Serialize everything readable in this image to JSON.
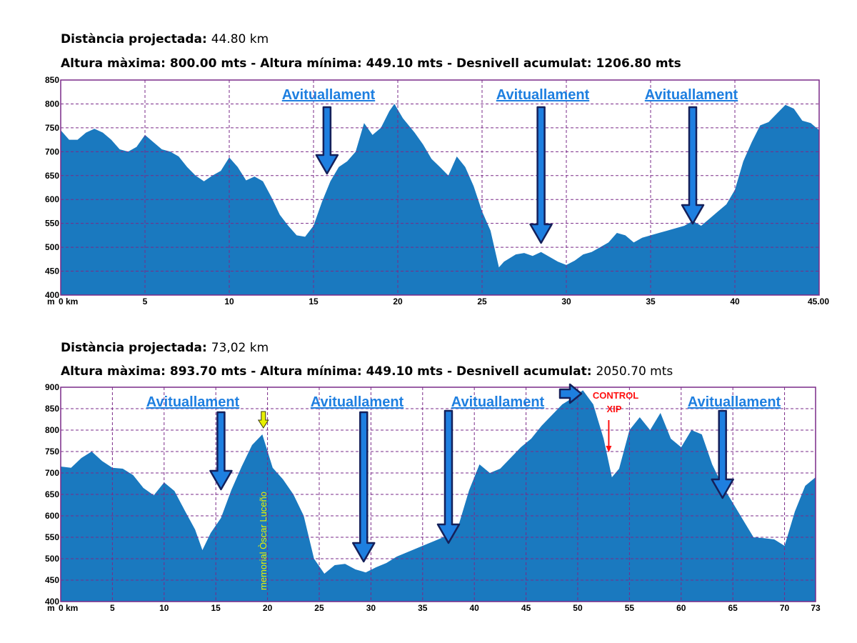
{
  "chart_data": [
    {
      "type": "area",
      "header": {
        "distance_label": "Distància projectada:",
        "distance_value": "44.80 km",
        "stats_prefix": "Altura màxima: 800.00 mts - Altura mínima: 449.10 mts - Desnivell acumulat:",
        "stats_value": "1206.80 mts"
      },
      "unit_label": "m",
      "xlim": [
        0,
        45
      ],
      "ylim": [
        400,
        850
      ],
      "x_ticks": [
        {
          "x": 0,
          "label": "0 km"
        },
        {
          "x": 5,
          "label": "5"
        },
        {
          "x": 10,
          "label": "10"
        },
        {
          "x": 15,
          "label": "15"
        },
        {
          "x": 20,
          "label": "20"
        },
        {
          "x": 25,
          "label": "25"
        },
        {
          "x": 30,
          "label": "30"
        },
        {
          "x": 35,
          "label": "35"
        },
        {
          "x": 40,
          "label": "40"
        },
        {
          "x": 45,
          "label": "45.00"
        }
      ],
      "y_ticks": [
        400,
        450,
        500,
        550,
        600,
        650,
        700,
        750,
        800,
        850
      ],
      "grid": true,
      "elevation_profile": {
        "x": [
          0,
          0.5,
          1,
          1.5,
          2,
          2.5,
          3,
          3.5,
          4,
          4.5,
          5,
          5.5,
          6,
          6.5,
          7,
          7.5,
          8,
          8.5,
          9,
          9.5,
          10,
          10.5,
          11,
          11.5,
          12,
          12.5,
          13,
          13.5,
          14,
          14.5,
          15,
          15.5,
          16,
          16.5,
          17,
          17.5,
          18,
          18.5,
          19,
          19.5,
          19.8,
          20.3,
          21,
          21.5,
          22,
          22.5,
          23,
          23.5,
          24,
          24.5,
          25,
          25.5,
          26,
          26.3,
          27,
          27.5,
          28,
          28.5,
          29,
          29.5,
          30,
          30.5,
          31,
          31.5,
          32,
          32.5,
          33,
          33.5,
          34,
          34.5,
          35,
          35.5,
          36,
          36.5,
          37,
          37.5,
          38,
          38.5,
          39,
          39.5,
          40,
          40.5,
          41,
          41.5,
          42,
          42.5,
          43,
          43.5,
          44,
          44.5,
          45
        ],
        "y": [
          745,
          725,
          725,
          740,
          748,
          740,
          725,
          705,
          700,
          710,
          735,
          720,
          705,
          700,
          690,
          668,
          650,
          638,
          650,
          660,
          688,
          668,
          640,
          648,
          638,
          605,
          568,
          545,
          525,
          522,
          545,
          595,
          638,
          668,
          680,
          700,
          760,
          735,
          750,
          785,
          800,
          770,
          740,
          715,
          685,
          668,
          650,
          690,
          668,
          628,
          575,
          535,
          458,
          470,
          485,
          488,
          482,
          490,
          480,
          470,
          463,
          472,
          485,
          490,
          500,
          510,
          530,
          525,
          510,
          520,
          525,
          530,
          535,
          540,
          545,
          555,
          545,
          560,
          575,
          590,
          620,
          680,
          720,
          755,
          762,
          780,
          798,
          790,
          765,
          760,
          745
        ]
      },
      "annotations": [
        {
          "text": "Avituallament",
          "x": 15.8
        },
        {
          "text": "Avituallament",
          "x": 28.5
        },
        {
          "text": "Avituallament",
          "x": 37.5
        }
      ]
    },
    {
      "type": "area",
      "header": {
        "distance_label": "Distància projectada:",
        "distance_value": "73,02 km",
        "stats_prefix": "Altura màxima: 893.70 mts - Altura mínima: 449.10 mts - Desnivell acumulat:",
        "stats_value": "2050.70 mts"
      },
      "unit_label": "m",
      "xlim": [
        0,
        73
      ],
      "ylim": [
        400,
        900
      ],
      "x_ticks": [
        {
          "x": 0,
          "label": "0 km"
        },
        {
          "x": 5,
          "label": "5"
        },
        {
          "x": 10,
          "label": "10"
        },
        {
          "x": 15,
          "label": "15"
        },
        {
          "x": 20,
          "label": "20"
        },
        {
          "x": 25,
          "label": "25"
        },
        {
          "x": 30,
          "label": "30"
        },
        {
          "x": 35,
          "label": "35"
        },
        {
          "x": 40,
          "label": "40"
        },
        {
          "x": 45,
          "label": "45"
        },
        {
          "x": 50,
          "label": "50"
        },
        {
          "x": 55,
          "label": "55"
        },
        {
          "x": 60,
          "label": "60"
        },
        {
          "x": 65,
          "label": "65"
        },
        {
          "x": 70,
          "label": "70"
        },
        {
          "x": 73,
          "label": "73"
        }
      ],
      "y_ticks": [
        400,
        450,
        500,
        550,
        600,
        650,
        700,
        750,
        800,
        850,
        900
      ],
      "grid": true,
      "elevation_profile": {
        "x": [
          0,
          1,
          2,
          3,
          4,
          5,
          6,
          7,
          8,
          9,
          10,
          11,
          12,
          13,
          13.7,
          14.5,
          15.5,
          16.5,
          17.5,
          18.5,
          19.5,
          20.5,
          21.5,
          22.5,
          23.5,
          24.5,
          25.5,
          26.5,
          27.5,
          28.5,
          29.5,
          30.5,
          31.5,
          32.5,
          33.5,
          34.5,
          35.5,
          36.5,
          37.5,
          38.5,
          39.5,
          40.5,
          41.5,
          42.5,
          43.5,
          44.5,
          45.5,
          46.5,
          47.5,
          48.5,
          49.5,
          50.5,
          51.5,
          52.5,
          53.3,
          54,
          55,
          56,
          57,
          58,
          59,
          60,
          61,
          62,
          63,
          64,
          65,
          66,
          67,
          68,
          69,
          70,
          71,
          72,
          73
        ],
        "y": [
          715,
          712,
          735,
          750,
          728,
          712,
          710,
          695,
          665,
          648,
          678,
          658,
          612,
          568,
          520,
          560,
          595,
          660,
          715,
          765,
          790,
          712,
          685,
          650,
          600,
          500,
          465,
          485,
          488,
          475,
          468,
          480,
          490,
          505,
          515,
          525,
          535,
          545,
          555,
          580,
          660,
          720,
          700,
          710,
          735,
          760,
          780,
          810,
          835,
          860,
          875,
          893,
          860,
          780,
          690,
          710,
          800,
          830,
          800,
          840,
          780,
          760,
          800,
          790,
          720,
          670,
          630,
          590,
          550,
          548,
          545,
          530,
          610,
          670,
          690
        ]
      },
      "annotations": [
        {
          "text": "Avituallament",
          "x": 15.5
        },
        {
          "text": "Avituallament",
          "x": 29.3
        },
        {
          "text": "Avituallament",
          "x": 37.5
        },
        {
          "text": "Avituallament",
          "x": 64
        },
        {
          "text": "CONTROL XIP",
          "x": 53
        },
        {
          "text": "memorial Òscar Luceño",
          "x": 19.6
        }
      ]
    }
  ],
  "colors": {
    "fill": "#1a79bf",
    "grid": "#7a2a88",
    "frame": "#7a2a88",
    "arrow_fill": "#1e7fe0",
    "arrow_stroke": "#14205a",
    "label": "#1e7fe0",
    "control": "#ff1010",
    "memorial": "#e8f000"
  }
}
